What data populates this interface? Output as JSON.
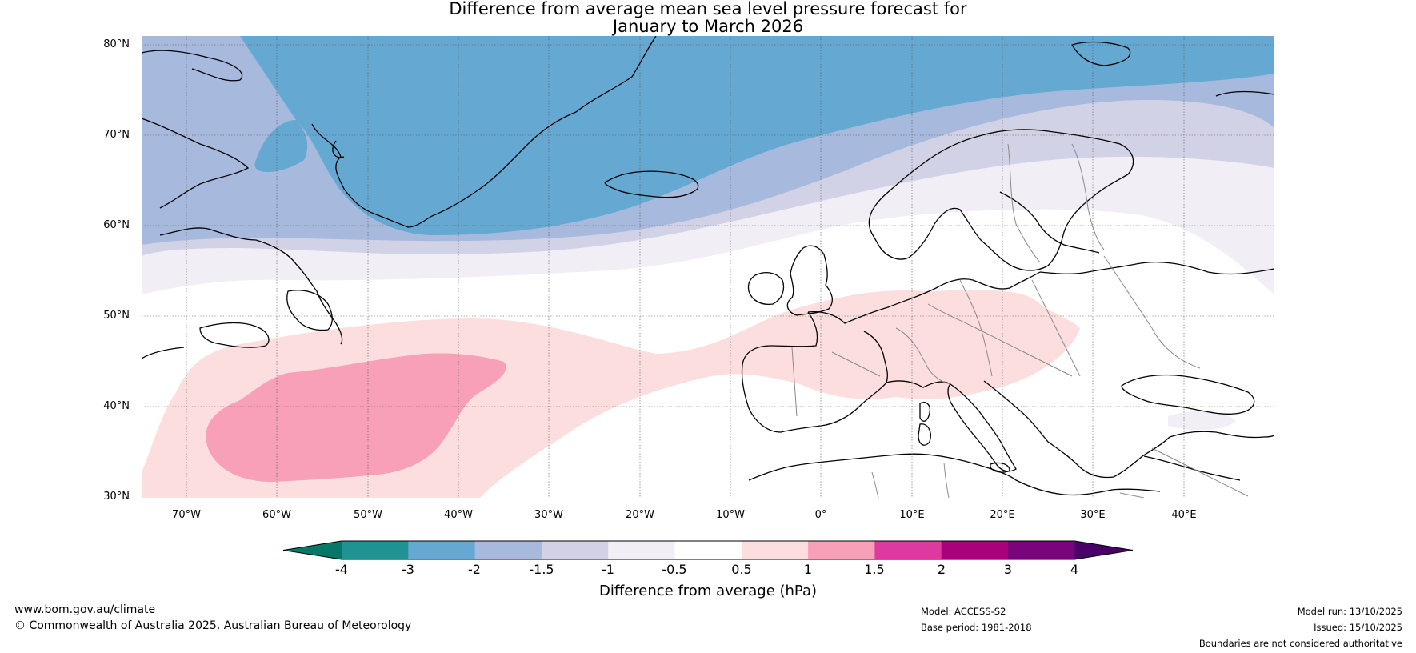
{
  "title": {
    "line1": "Difference from average mean sea level pressure forecast for",
    "line2": "January to March 2026"
  },
  "map": {
    "lat_labels": [
      "80°N",
      "70°N",
      "60°N",
      "50°N",
      "40°N",
      "30°N"
    ],
    "lon_labels": [
      "70°W",
      "60°W",
      "50°W",
      "40°W",
      "30°W",
      "20°W",
      "10°W",
      "0°",
      "10°E",
      "20°E",
      "30°E",
      "40°E"
    ],
    "lat_range": [
      30,
      80
    ],
    "lon_range": [
      -75,
      50
    ],
    "features": [
      "Greenland",
      "Iceland",
      "Svalbard",
      "Scandinavia",
      "British Isles",
      "Iberia",
      "Italy",
      "North Africa",
      "Canada east coast"
    ]
  },
  "colorbar": {
    "title": "Difference from average (hPa)",
    "tick_labels": [
      "-4",
      "-3",
      "-2",
      "-1.5",
      "-1",
      "-0.5",
      "0.5",
      "1",
      "1.5",
      "2",
      "3",
      "4"
    ],
    "colors": [
      "#1f9293",
      "#65a8d1",
      "#a7b9dd",
      "#d2d2e7",
      "#f2eef6",
      "#ffffff",
      "#fcdede",
      "#f7a0b8",
      "#dd3aa0",
      "#a9017c",
      "#79047c",
      "#4a0069"
    ],
    "under_color": "#067868",
    "over_color": "#4a0069"
  },
  "colors": {
    "c_m3_m2": "#65a8d1",
    "c_m2_m15": "#a7b9dd",
    "c_m15_m1": "#d2d2e7",
    "c_m1_m05": "#f2eef6",
    "c_05_1": "#fcdede",
    "c_1_15": "#f7a0b8"
  },
  "footer": {
    "website": "www.bom.gov.au/climate",
    "copyright": "© Commonwealth of Australia 2025, Australian Bureau of Meteorology",
    "model": "Model: ACCESS-S2",
    "base_period": "Base period: 1981-2018",
    "model_run": "Model run: 13/10/2025",
    "issued": "Issued: 15/10/2025",
    "disclaimer": "Boundaries are not considered authoritative"
  }
}
